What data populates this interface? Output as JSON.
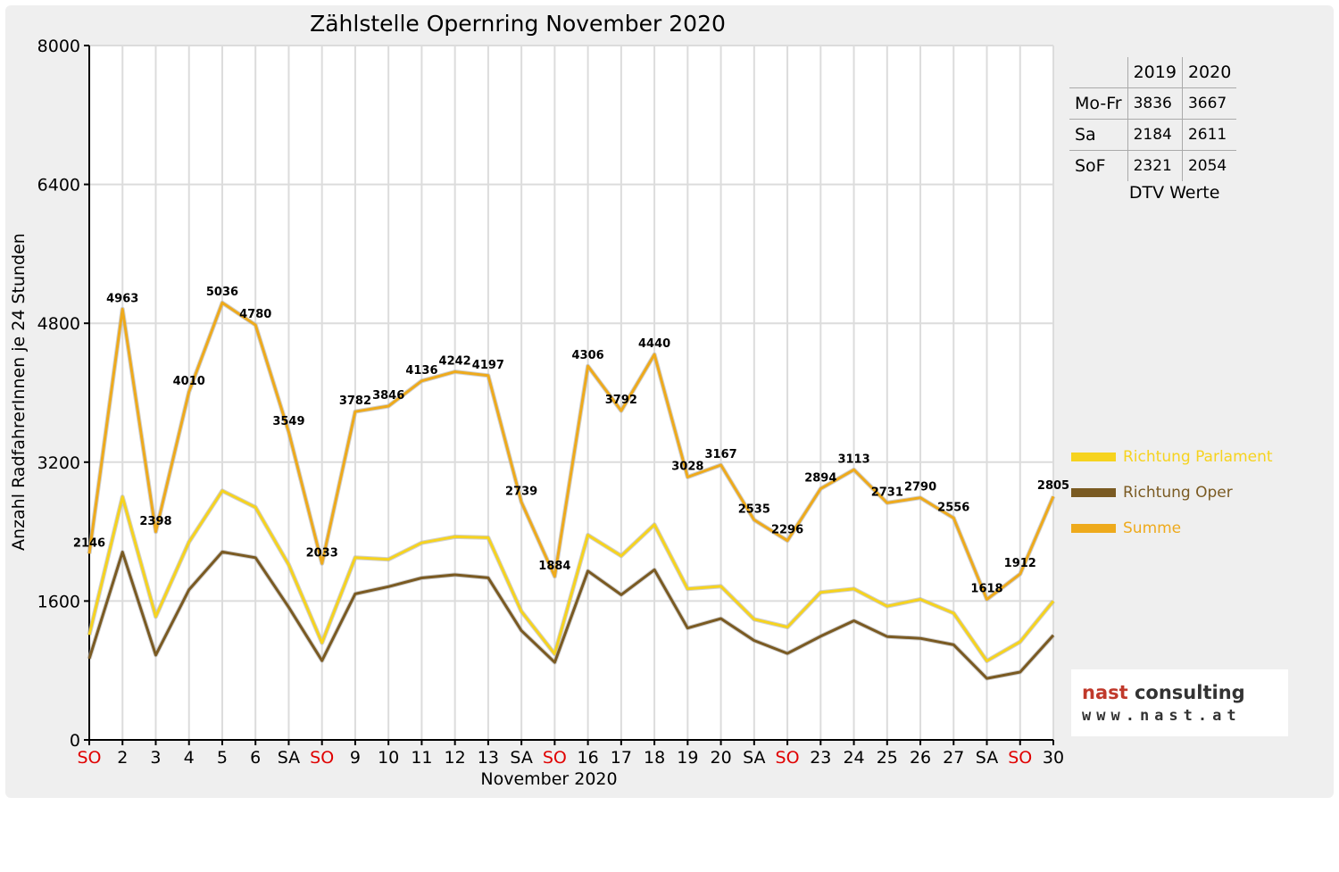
{
  "colors": {
    "parlament": "#f6d31f",
    "oper": "#7a5a22",
    "summe": "#eeaa1c",
    "weekend": "#e00000",
    "grid": "#dcdcdc"
  },
  "dtv_table": {
    "headers": [
      "",
      "2019",
      "2020"
    ],
    "rows": [
      {
        "label": "Mo-Fr",
        "v2019": "3836",
        "v2020": "3667"
      },
      {
        "label": "Sa",
        "v2019": "2184",
        "v2020": "2611"
      },
      {
        "label": "SoF",
        "v2019": "2321",
        "v2020": "2054"
      }
    ],
    "caption": "DTV Werte"
  },
  "logo": {
    "line1": "nast",
    "line1b": "consulting",
    "line2": "www.nast.at"
  },
  "chart_data": {
    "type": "line",
    "title": "Zählstelle Opernring November 2020",
    "xlabel": "November 2020",
    "ylabel": "Anzahl RadfahrerInnen je 24 Stunden",
    "ylim": [
      0,
      8000
    ],
    "yticks": [
      0,
      1600,
      3200,
      4800,
      6400,
      8000
    ],
    "grid": true,
    "legend_position": "right",
    "categories": [
      "SO",
      "2",
      "3",
      "4",
      "5",
      "6",
      "SA",
      "SO",
      "9",
      "10",
      "11",
      "12",
      "13",
      "SA",
      "SO",
      "16",
      "17",
      "18",
      "19",
      "20",
      "SA",
      "SO",
      "23",
      "24",
      "25",
      "26",
      "27",
      "SA",
      "SO",
      "30"
    ],
    "weekend_flags": [
      "SO",
      "",
      "",
      "",
      "",
      "",
      "",
      "SO",
      "",
      "",
      "",
      "",
      "",
      "",
      "SO",
      "",
      "",
      "",
      "",
      "",
      "",
      "SO",
      "",
      "",
      "",
      "",
      "",
      "",
      "SO",
      ""
    ],
    "series": [
      {
        "name": "Richtung Parlament",
        "color_key": "parlament",
        "values": [
          1210,
          2800,
          1420,
          2280,
          2870,
          2680,
          2020,
          1120,
          2100,
          2080,
          2270,
          2340,
          2330,
          1480,
          990,
          2360,
          2120,
          2480,
          1740,
          1770,
          1390,
          1300,
          1700,
          1740,
          1540,
          1620,
          1460,
          910,
          1130,
          1600
        ]
      },
      {
        "name": "Richtung Oper",
        "color_key": "oper",
        "values": [
          936,
          2163,
          978,
          1730,
          2166,
          2100,
          1529,
          913,
          1682,
          1766,
          1866,
          1902,
          1867,
          1259,
          894,
          1946,
          1672,
          1960,
          1288,
          1397,
          1145,
          996,
          1194,
          1373,
          1191,
          1170,
          1096,
          708,
          782,
          1205
        ]
      },
      {
        "name": "Summe",
        "color_key": "summe",
        "values": [
          2146,
          4963,
          2398,
          4010,
          5036,
          4780,
          3549,
          2033,
          3782,
          3846,
          4136,
          4242,
          4197,
          2739,
          1884,
          4306,
          3792,
          4440,
          3028,
          3167,
          2535,
          2296,
          2894,
          3113,
          2731,
          2790,
          2556,
          1618,
          1912,
          2805
        ]
      }
    ],
    "data_labels": [
      "2146",
      "4963",
      "2398",
      "4010",
      "5036",
      "4780",
      "3549",
      "2033",
      "3782",
      "3846",
      "4136",
      "4242",
      "4197",
      "2739",
      "1884",
      "4306",
      "3792",
      "4440",
      "3028",
      "3167",
      "2535",
      "2296",
      "2894",
      "3113",
      "2731",
      "2790",
      "2556",
      "1618",
      "1912",
      "2805"
    ]
  }
}
